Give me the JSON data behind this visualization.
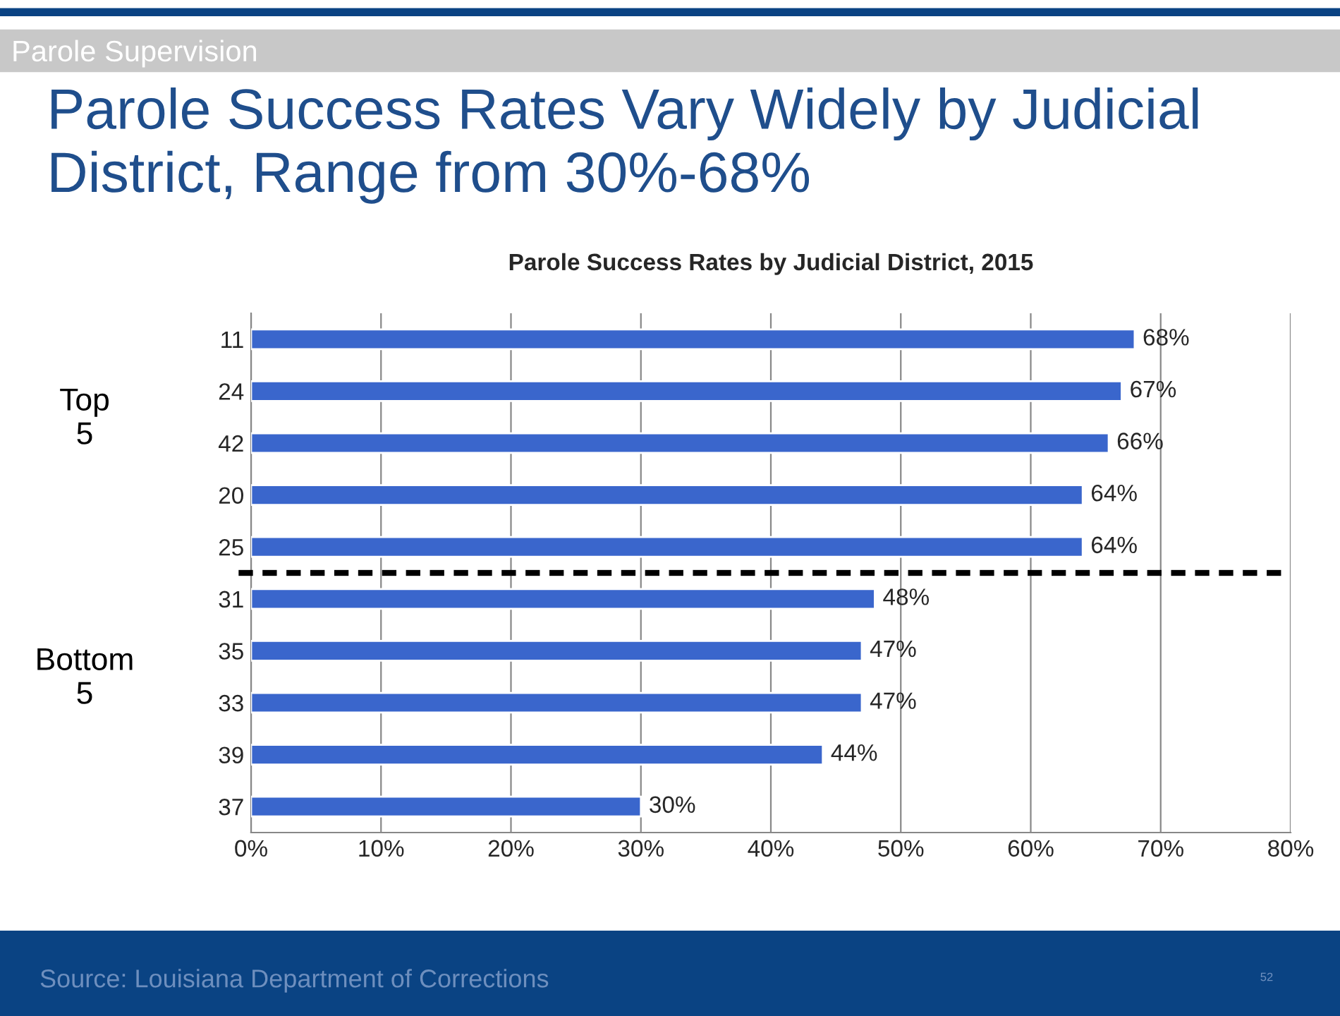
{
  "chart_data": {
    "type": "bar",
    "orientation": "horizontal",
    "title": "Parole Success Rates Vary Widely by Judicial District, Range from 30%-68%",
    "subtitle": "Parole Success Rates by Judicial District, 2015",
    "categories": [
      "11",
      "24",
      "42",
      "20",
      "25",
      "31",
      "35",
      "33",
      "39",
      "37"
    ],
    "values": [
      68,
      67,
      66,
      64,
      64,
      48,
      47,
      47,
      44,
      30
    ],
    "value_labels": [
      "68%",
      "67%",
      "66%",
      "64%",
      "64%",
      "48%",
      "47%",
      "47%",
      "44%",
      "30%"
    ],
    "color": "#3A66CC",
    "xlim": [
      0,
      80
    ],
    "xticks": [
      {
        "value": 0,
        "label": "0%"
      },
      {
        "value": 10,
        "label": "10%"
      },
      {
        "value": 20,
        "label": "20%"
      },
      {
        "value": 30,
        "label": "30%"
      },
      {
        "value": 40,
        "label": "40%"
      },
      {
        "value": 50,
        "label": "50%"
      },
      {
        "value": 60,
        "label": "60%"
      },
      {
        "value": 70,
        "label": "70%"
      },
      {
        "value": 80,
        "label": "80%"
      }
    ],
    "grid": "x",
    "annotations": [
      "Parole Supervision",
      "Top\n5",
      "Bottom\n5",
      "Source: Louisiana Department of Corrections",
      "52"
    ]
  }
}
